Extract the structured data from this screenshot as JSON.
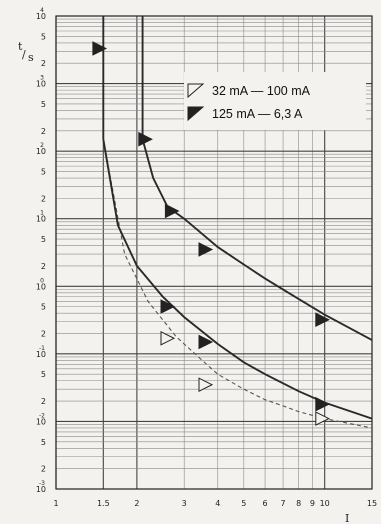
{
  "chart_data": {
    "type": "line",
    "title": "",
    "xlabel": "I/In",
    "ylabel": "t/s",
    "x_scale": "log",
    "y_scale": "log",
    "xlim": [
      1,
      15
    ],
    "ylim": [
      0.001,
      10000
    ],
    "grid": true,
    "legend_position": "top-right",
    "x_ticks": [
      "1",
      "1.5",
      "2",
      "3",
      "4",
      "5",
      "6",
      "7",
      "8",
      "9",
      "10",
      "15"
    ],
    "y_ticks": [
      {
        "mantissa": "10",
        "exp": "4"
      },
      {
        "mantissa": "5",
        "exp": ""
      },
      {
        "mantissa": "2",
        "exp": ""
      },
      {
        "mantissa": "10",
        "exp": "3"
      },
      {
        "mantissa": "5",
        "exp": ""
      },
      {
        "mantissa": "2",
        "exp": ""
      },
      {
        "mantissa": "10",
        "exp": "2"
      },
      {
        "mantissa": "5",
        "exp": ""
      },
      {
        "mantissa": "2",
        "exp": ""
      },
      {
        "mantissa": "10",
        "exp": "1"
      },
      {
        "mantissa": "5",
        "exp": ""
      },
      {
        "mantissa": "2",
        "exp": ""
      },
      {
        "mantissa": "10",
        "exp": "0"
      },
      {
        "mantissa": "5",
        "exp": ""
      },
      {
        "mantissa": "2",
        "exp": ""
      },
      {
        "mantissa": "10",
        "exp": "-1"
      },
      {
        "mantissa": "5",
        "exp": ""
      },
      {
        "mantissa": "2",
        "exp": ""
      },
      {
        "mantissa": "10",
        "exp": "-2"
      },
      {
        "mantissa": "5",
        "exp": ""
      },
      {
        "mantissa": "2",
        "exp": ""
      },
      {
        "mantissa": "10",
        "exp": "-3"
      }
    ],
    "series": [
      {
        "name": "32 mA — 100 mA",
        "style": "dashed",
        "marker": "open-triangle",
        "points": [
          [
            1.5,
            150
          ],
          [
            1.8,
            3
          ],
          [
            2.2,
            0.6
          ],
          [
            2.8,
            0.18
          ],
          [
            3.5,
            0.08
          ],
          [
            4,
            0.05
          ],
          [
            5,
            0.03
          ],
          [
            6,
            0.021
          ],
          [
            7,
            0.017
          ],
          [
            8,
            0.014
          ],
          [
            10,
            0.011
          ],
          [
            15,
            0.008
          ]
        ]
      },
      {
        "name": "125 mA — 6,3 A",
        "style": "solid",
        "marker": "filled-triangle",
        "points": [
          [
            1.5,
            150
          ],
          [
            1.7,
            8
          ],
          [
            2,
            2
          ],
          [
            2.5,
            0.7
          ],
          [
            3,
            0.35
          ],
          [
            4,
            0.14
          ],
          [
            5,
            0.075
          ],
          [
            6,
            0.05
          ],
          [
            8,
            0.028
          ],
          [
            10,
            0.019
          ],
          [
            15,
            0.011
          ]
        ]
      },
      {
        "name": "",
        "style": "solid",
        "marker": "filled-triangle",
        "points": [
          [
            2.1,
            150
          ],
          [
            2.3,
            40
          ],
          [
            2.6,
            15
          ],
          [
            3,
            10
          ],
          [
            4,
            3.8
          ],
          [
            5,
            2.1
          ],
          [
            6,
            1.3
          ],
          [
            8,
            0.65
          ],
          [
            10,
            0.38
          ],
          [
            15,
            0.16
          ]
        ]
      }
    ],
    "legend": [
      {
        "label": "32 mA",
        "dash": "—",
        "label2": "100 mA",
        "marker": "open-triangle"
      },
      {
        "label": "125 mA",
        "dash": "—",
        "label2": "6,3 A",
        "marker": "filled-triangle"
      }
    ],
    "markers_filled": [
      [
        1.45,
        3300
      ],
      [
        2.15,
        150
      ],
      [
        2.7,
        13
      ],
      [
        3.6,
        3.5
      ],
      [
        9.8,
        0.32
      ],
      [
        2.6,
        0.5
      ],
      [
        3.6,
        0.15
      ],
      [
        9.8,
        0.018
      ]
    ],
    "markers_open": [
      [
        2.6,
        0.17
      ],
      [
        3.6,
        0.035
      ],
      [
        9.8,
        0.011
      ]
    ]
  }
}
